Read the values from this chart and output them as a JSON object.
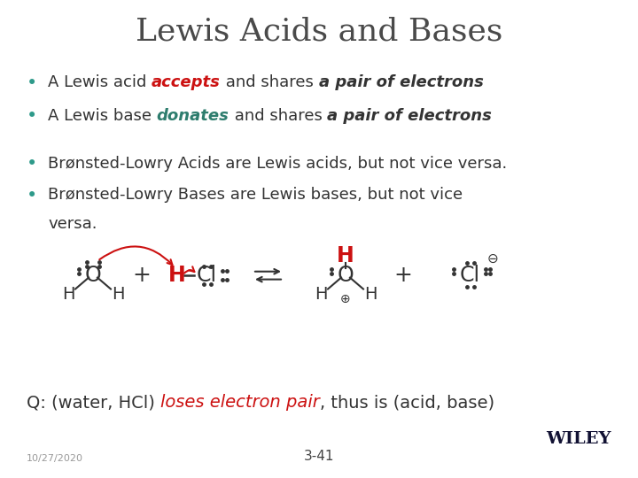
{
  "title": "Lewis Acids and Bases",
  "title_color": "#4a4a4a",
  "title_fontsize": 26,
  "bg_color": "#ffffff",
  "bullet_color": "#2e9a8a",
  "text_color": "#333333",
  "red_color": "#cc1111",
  "teal_color": "#2e7d6e",
  "bullet3": "Brønsted-Lowry Acids are Lewis acids, but not vice versa.",
  "bullet4a": "Brønsted-Lowry Bases are Lewis bases, but not vice",
  "bullet4b": "versa.",
  "date": "10/27/2020",
  "page": "3-41",
  "wiley": "WILEY"
}
